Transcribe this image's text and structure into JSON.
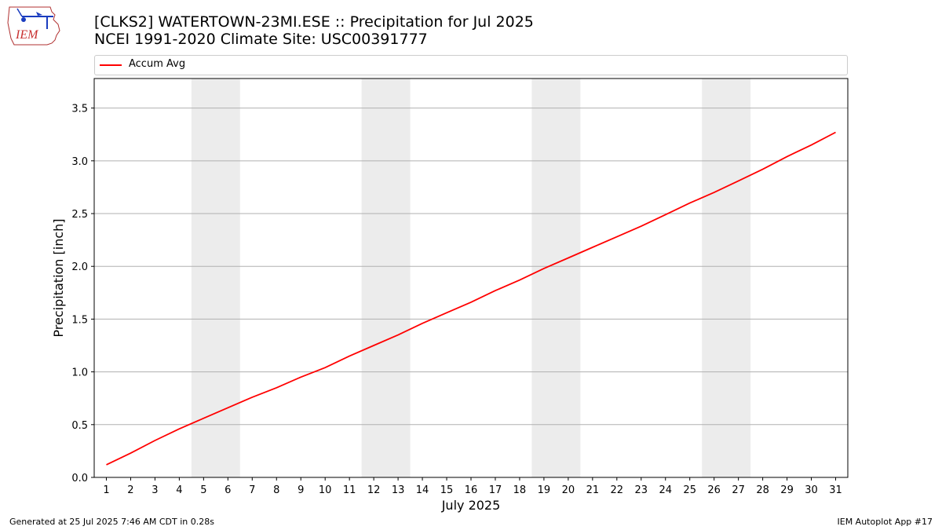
{
  "logo": {
    "text": "IEM"
  },
  "header": {
    "title_line1": "[CLKS2] WATERTOWN-23MI.ESE :: Precipitation for Jul 2025",
    "title_line2": "NCEI 1991-2020 Climate Site: USC00391777"
  },
  "legend": {
    "label": "Accum Avg",
    "color": "#ff0000"
  },
  "footer": {
    "left": "Generated at 25 Jul 2025 7:46 AM CDT in 0.28s",
    "right": "IEM Autoplot App #17"
  },
  "chart_data": {
    "type": "line",
    "xlabel": "July 2025",
    "ylabel": "Precipitation [inch]",
    "x": [
      1,
      2,
      3,
      4,
      5,
      6,
      7,
      8,
      9,
      10,
      11,
      12,
      13,
      14,
      15,
      16,
      17,
      18,
      19,
      20,
      21,
      22,
      23,
      24,
      25,
      26,
      27,
      28,
      29,
      30,
      31
    ],
    "xlim": [
      0.5,
      31.5
    ],
    "ylim": [
      0,
      3.78
    ],
    "yticks": [
      0.0,
      0.5,
      1.0,
      1.5,
      2.0,
      2.5,
      3.0,
      3.5
    ],
    "ytick_labels": [
      "0.0",
      "0.5",
      "1.0",
      "1.5",
      "2.0",
      "2.5",
      "3.0",
      "3.5"
    ],
    "grid": "y-axis",
    "legend_position": "top",
    "weekend_shading": [
      [
        4.5,
        6.5
      ],
      [
        11.5,
        13.5
      ],
      [
        18.5,
        20.5
      ],
      [
        25.5,
        27.5
      ]
    ],
    "shading_color": "#ececec",
    "series": [
      {
        "name": "Accum Avg",
        "color": "#ff0000",
        "values": [
          0.12,
          0.23,
          0.35,
          0.46,
          0.56,
          0.66,
          0.76,
          0.85,
          0.95,
          1.04,
          1.15,
          1.25,
          1.35,
          1.46,
          1.56,
          1.66,
          1.77,
          1.87,
          1.98,
          2.08,
          2.18,
          2.28,
          2.38,
          2.49,
          2.6,
          2.7,
          2.81,
          2.92,
          3.04,
          3.15,
          3.27
        ]
      }
    ]
  }
}
